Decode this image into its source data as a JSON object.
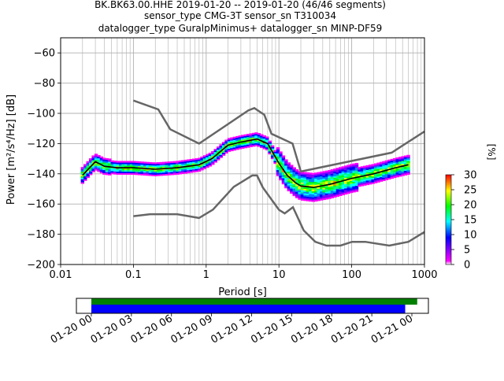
{
  "title_lines": [
    "BK.BK63.00.HHE   2019-01-20 -- 2019-01-20  (46/46 segments)",
    "sensor_type CMG-3T sensor_sn T310034",
    "datalogger_type GuralpMinimus+ datalogger_sn MINP-DF59"
  ],
  "chart_data": [
    {
      "type": "heatmap",
      "xlabel": "Period [s]",
      "ylabel": "Power [m²/s⁴/Hz] [dB]",
      "xscale": "log",
      "xlim": [
        0.01,
        1000
      ],
      "ylim": [
        -200,
        -50
      ],
      "x_ticks": [
        0.01,
        0.1,
        1,
        10,
        100,
        1000
      ],
      "x_tick_labels": [
        "0.01",
        "0.1",
        "1",
        "10",
        "100",
        "1000"
      ],
      "y_ticks": [
        -200,
        -180,
        -160,
        -140,
        -120,
        -100,
        -80,
        -60
      ],
      "y_tick_labels": [
        "−200",
        "−180",
        "−160",
        "−140",
        "−120",
        "−100",
        "−80",
        "−60"
      ],
      "grid": true,
      "noise_models": {
        "high": {
          "x": [
            0.1,
            0.22,
            0.32,
            0.8,
            3.8,
            4.6,
            6.3,
            7.9,
            15.4,
            20,
            354.8,
            1000
          ],
          "y": [
            -91.5,
            -97.4,
            -110.5,
            -120,
            -98,
            -96.5,
            -101,
            -113.5,
            -120,
            -138.5,
            -126,
            -112
          ]
        },
        "low": {
          "x": [
            0.1,
            0.17,
            0.4,
            0.8,
            1.24,
            2.4,
            4.3,
            5,
            6,
            10,
            12,
            15.6,
            21.9,
            31.6,
            45,
            70,
            101,
            154,
            328,
            600,
            1000
          ],
          "y": [
            -168,
            -166.7,
            -166.7,
            -169.2,
            -163.7,
            -148.6,
            -141.1,
            -141.1,
            -149,
            -163.8,
            -166.2,
            -162.1,
            -177.5,
            -185,
            -187.5,
            -187.5,
            -185,
            -185,
            -187.5,
            -185,
            -178.5
          ]
        }
      },
      "mode_line": {
        "x": [
          0.02,
          0.025,
          0.03,
          0.04,
          0.06,
          0.1,
          0.2,
          0.4,
          0.8,
          1.2,
          2,
          3,
          5,
          7,
          10,
          13,
          17,
          20,
          30,
          50,
          100,
          200,
          400,
          600
        ],
        "y": [
          -141,
          -136,
          -132,
          -135,
          -136,
          -136,
          -137,
          -136,
          -134,
          -130,
          -121,
          -119,
          -117,
          -120,
          -133,
          -141,
          -146,
          -148,
          -149,
          -147,
          -143,
          -140,
          -136,
          -134
        ]
      },
      "colorbar": {
        "label": "[%]",
        "range": [
          0,
          30
        ],
        "ticks": [
          0,
          5,
          10,
          15,
          20,
          25,
          30
        ],
        "tick_labels": [
          "0",
          "5",
          "10",
          "15",
          "20",
          "25",
          "30"
        ],
        "colors": [
          "#ffffff",
          "#ff00ff",
          "#0000ff",
          "#00ffff",
          "#00ff00",
          "#ffff00",
          "#ff0000"
        ]
      },
      "colors": {
        "noise_model": "#666666",
        "mode": "#000000",
        "grid": "#b0b0b0"
      }
    },
    {
      "type": "timeline",
      "x_tick_labels": [
        "01-20 00",
        "01-20 03",
        "01-20 06",
        "01-20 09",
        "01-20 12",
        "01-20 15",
        "01-20 18",
        "01-20 21",
        "01-21 00"
      ],
      "bars": [
        {
          "start_hours": 0,
          "end_hours": 24.4,
          "color": "#008000"
        },
        {
          "start_hours": 0,
          "end_hours": 23.5,
          "color": "#0000ff"
        }
      ]
    }
  ]
}
